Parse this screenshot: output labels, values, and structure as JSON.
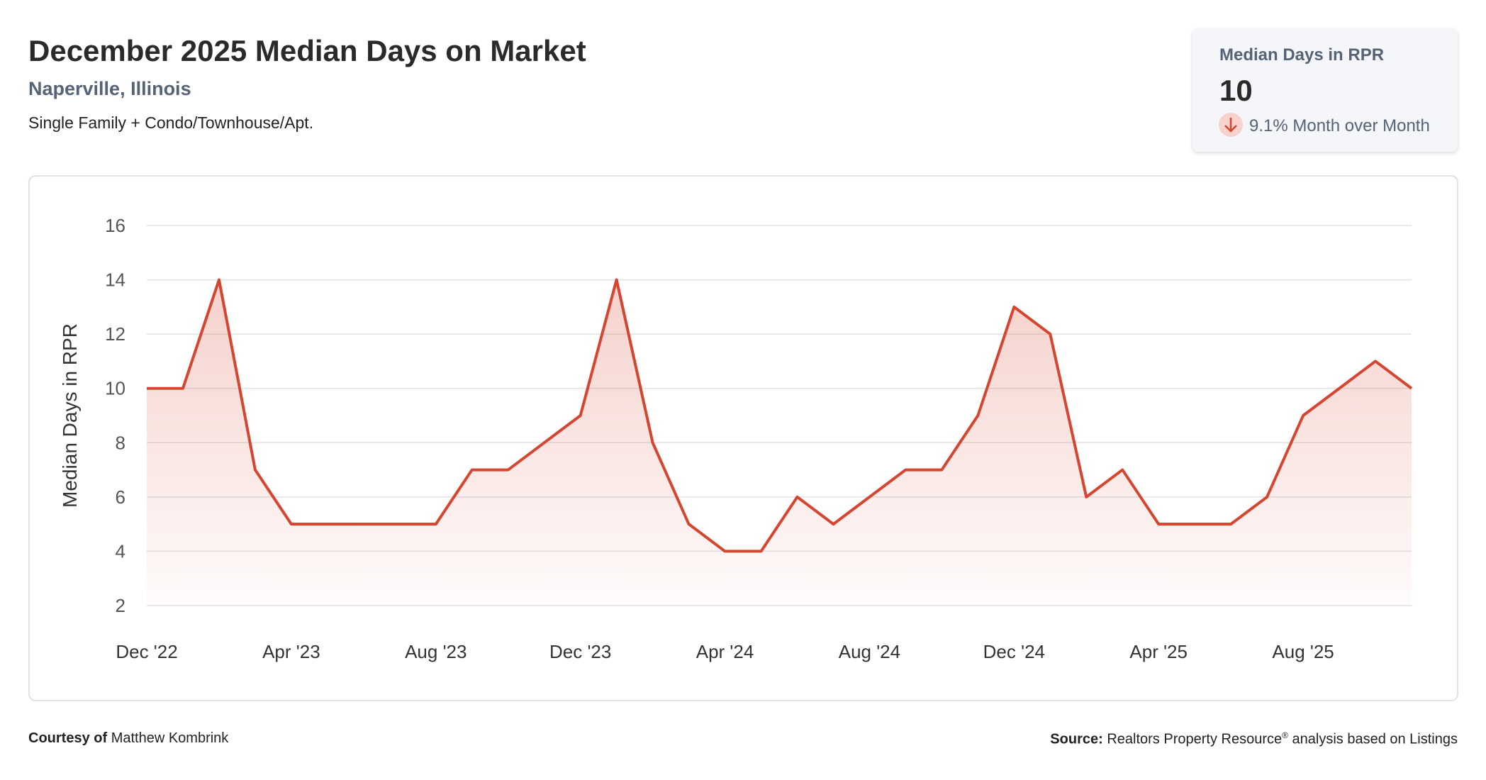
{
  "header": {
    "title": "December 2025 Median Days on Market",
    "location": "Naperville, Illinois",
    "segment": "Single Family + Condo/Townhouse/Apt."
  },
  "kpi": {
    "label": "Median Days in RPR",
    "value": 10,
    "change": "9.1% Month over Month"
  },
  "chart_data": {
    "type": "line",
    "y_label": "Median Days in RPR",
    "color": "#d6452f",
    "grid": true,
    "categories": [
      "Dec '22",
      null,
      null,
      null,
      "Apr '23",
      null,
      null,
      null,
      "Aug '23",
      null,
      null,
      null,
      "Dec '23",
      null,
      null,
      null,
      "Apr '24",
      null,
      null,
      null,
      "Aug '24",
      null,
      null,
      null,
      "Dec '24",
      null,
      null,
      null,
      "Apr '25",
      null,
      null,
      null,
      "Aug '25",
      null,
      null,
      null
    ],
    "values": [
      10,
      10,
      14,
      7,
      5,
      5,
      5,
      5,
      5,
      7,
      7,
      8,
      9,
      14,
      8,
      5,
      4,
      4,
      6,
      5,
      6,
      7,
      7,
      9,
      13,
      12,
      6,
      7,
      5,
      5,
      5,
      6,
      9,
      10,
      11,
      10
    ],
    "ylim": [
      2,
      16
    ],
    "yticks": [
      2,
      4,
      6,
      8,
      10,
      12,
      14,
      16
    ]
  },
  "footer": {
    "courtesy_label": "Courtesy of",
    "courtesy_name": "Matthew Kombrink",
    "source_label": "Source:",
    "source_text": "Realtors Property Resource",
    "source_mark": "®",
    "source_rest": "analysis based on Listings"
  }
}
